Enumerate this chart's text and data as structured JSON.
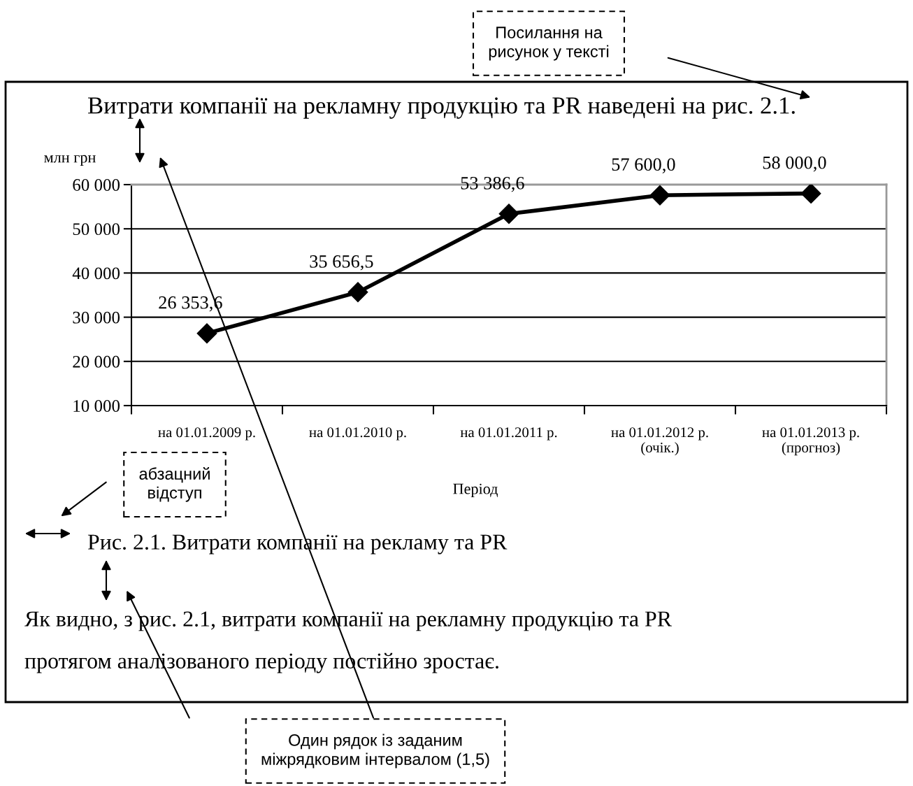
{
  "chart_data": {
    "type": "line",
    "title": "Витрати компанії на рекламну продукцію та PR наведені на рис. 2.1.",
    "ylabel": "млн грн",
    "xlabel": "Період",
    "categories": [
      "на 01.01.2009 р.",
      "на 01.01.2010 р.",
      "на 01.01.2011 р.",
      "на 01.01.2012 р.\n(очік.)",
      "на 01.01.2013 р.\n(прогноз)"
    ],
    "series": [
      {
        "color": "#000000",
        "values": [
          26353.6,
          35656.5,
          53386.6,
          57600.0,
          58000.0
        ],
        "value_labels": [
          "26 353,6",
          "35 656,5",
          "53 386,6",
          "57 600,0",
          "58 000,0"
        ]
      }
    ],
    "ylim": [
      10000,
      60000
    ],
    "yticks": [
      {
        "value": 10000,
        "label": "10 000"
      },
      {
        "value": 20000,
        "label": "20 000"
      },
      {
        "value": 30000,
        "label": "30 000"
      },
      {
        "value": 40000,
        "label": "40 000"
      },
      {
        "value": 50000,
        "label": "50 000"
      },
      {
        "value": 60000,
        "label": "60 000"
      }
    ],
    "grid": "y",
    "marker": "diamond",
    "line_style": "solid",
    "annotations": [
      "Рис. 2.1. Витрати компанії на рекламу та PR",
      "Як видно, з рис. 2.1, витрати компанії на рекламну продукцію та PR\nпротягом аналізованого періоду постійно зростає.",
      "Посилання на\nрисунок у тексті",
      "абзацний\nвідступ",
      "Один рядок із заданим\nміжрядковим інтервалом (1,5)"
    ]
  }
}
